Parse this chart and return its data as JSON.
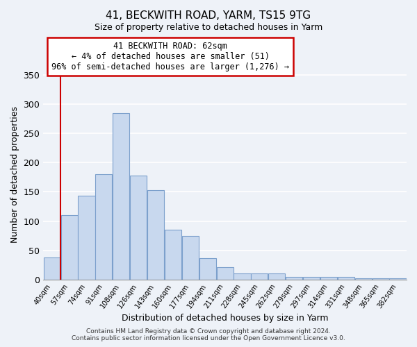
{
  "title": "41, BECKWITH ROAD, YARM, TS15 9TG",
  "subtitle": "Size of property relative to detached houses in Yarm",
  "xlabel": "Distribution of detached houses by size in Yarm",
  "ylabel": "Number of detached properties",
  "bar_color": "#c8d8ee",
  "bar_edge_color": "#7ca0cc",
  "categories": [
    "40sqm",
    "57sqm",
    "74sqm",
    "91sqm",
    "108sqm",
    "126sqm",
    "143sqm",
    "160sqm",
    "177sqm",
    "194sqm",
    "211sqm",
    "228sqm",
    "245sqm",
    "262sqm",
    "279sqm",
    "297sqm",
    "314sqm",
    "331sqm",
    "348sqm",
    "365sqm",
    "382sqm"
  ],
  "values": [
    38,
    110,
    143,
    180,
    285,
    178,
    153,
    85,
    75,
    37,
    21,
    10,
    11,
    11,
    4,
    4,
    4,
    5,
    2,
    2,
    2
  ],
  "ylim": [
    0,
    360
  ],
  "yticks": [
    0,
    50,
    100,
    150,
    200,
    250,
    300,
    350
  ],
  "marker_color": "#cc0000",
  "annotation_title": "41 BECKWITH ROAD: 62sqm",
  "annotation_line1": "← 4% of detached houses are smaller (51)",
  "annotation_line2": "96% of semi-detached houses are larger (1,276) →",
  "annotation_box_color": "#ffffff",
  "annotation_box_edge": "#cc0000",
  "footer1": "Contains HM Land Registry data © Crown copyright and database right 2024.",
  "footer2": "Contains public sector information licensed under the Open Government Licence v3.0.",
  "background_color": "#eef2f8",
  "plot_bg_color": "#eef2f8",
  "grid_color": "#ffffff"
}
